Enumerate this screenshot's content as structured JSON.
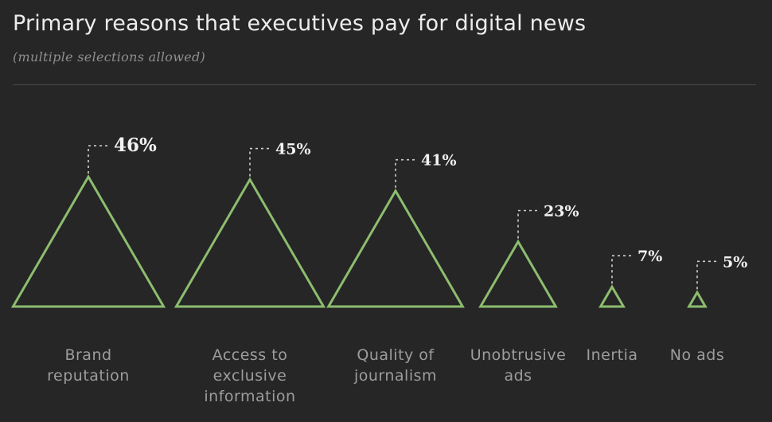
{
  "title": "Primary reasons that executives pay for digital news",
  "subtitle": "(multiple selections allowed)",
  "colors": {
    "background": "#262626",
    "triangle_stroke": "#8dbd6f",
    "leader_line": "#d0d0d0",
    "value_label": "#f2f2f2",
    "category_label": "#9d9d9d"
  },
  "chart_data": {
    "type": "bar",
    "mark": "triangle",
    "categories": [
      "Brand reputation",
      "Access to exclusive information",
      "Quality of journalism",
      "Unobtrusive ads",
      "Inertia",
      "No ads"
    ],
    "category_lines": [
      [
        "Brand",
        "reputation"
      ],
      [
        "Access to",
        "exclusive",
        "information"
      ],
      [
        "Quality of",
        "journalism"
      ],
      [
        "Unobtrusive",
        "ads"
      ],
      [
        "Inertia"
      ],
      [
        "No ads"
      ]
    ],
    "values": [
      46,
      45,
      41,
      23,
      7,
      5
    ],
    "value_labels": [
      "46%",
      "45%",
      "41%",
      "23%",
      "7%",
      "5%"
    ],
    "unit": "%",
    "grid": false,
    "legend": "none"
  }
}
